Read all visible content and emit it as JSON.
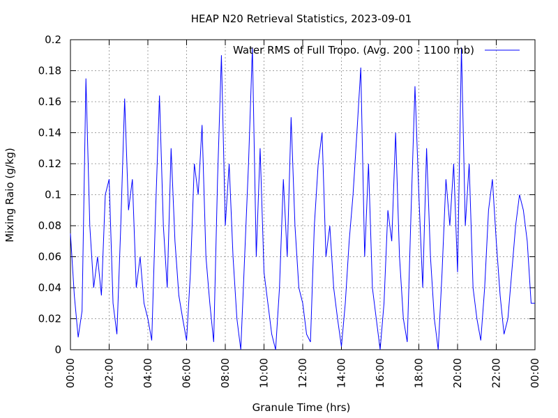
{
  "chart_data": {
    "type": "line",
    "title": "HEAP N20 Retrieval Statistics, 2023-09-01",
    "x_label": "Granule Time (hrs)",
    "y_label": "Mixing Raio (g/kg)",
    "x": [
      0,
      0.2,
      0.4,
      0.6,
      0.8,
      1,
      1.2,
      1.4,
      1.6,
      1.8,
      2,
      2.2,
      2.4,
      2.6,
      2.8,
      3,
      3.2,
      3.4,
      3.6,
      3.8,
      4,
      4.2,
      4.4,
      4.6,
      4.8,
      5,
      5.2,
      5.4,
      5.6,
      5.8,
      6,
      6.2,
      6.4,
      6.6,
      6.8,
      7,
      7.2,
      7.4,
      7.6,
      7.8,
      8,
      8.2,
      8.4,
      8.6,
      8.8,
      9,
      9.2,
      9.4,
      9.6,
      9.8,
      10,
      10.2,
      10.4,
      10.6,
      10.8,
      11,
      11.2,
      11.4,
      11.6,
      11.8,
      12,
      12.2,
      12.4,
      12.6,
      12.8,
      13,
      13.2,
      13.4,
      13.6,
      13.8,
      14,
      14.2,
      14.4,
      14.6,
      14.8,
      15,
      15.2,
      15.4,
      15.6,
      15.8,
      16,
      16.2,
      16.4,
      16.6,
      16.8,
      17,
      17.2,
      17.4,
      17.6,
      17.8,
      18,
      18.2,
      18.4,
      18.6,
      18.8,
      19,
      19.2,
      19.4,
      19.6,
      19.8,
      20,
      20.2,
      20.4,
      20.6,
      20.8,
      21,
      21.2,
      21.4,
      21.6,
      21.8,
      22,
      22.2,
      22.4,
      22.6,
      22.8,
      23,
      23.2,
      23.4,
      23.6,
      23.8,
      24
    ],
    "series": [
      {
        "name": "Water RMS of Full Tropo. (Avg. 200 - 1100 mb)",
        "color": "#0000ff",
        "values": [
          0.075,
          0.035,
          0.008,
          0.025,
          0.175,
          0.08,
          0.04,
          0.06,
          0.035,
          0.1,
          0.11,
          0.03,
          0.01,
          0.08,
          0.162,
          0.09,
          0.11,
          0.04,
          0.06,
          0.03,
          0.02,
          0.006,
          0.09,
          0.164,
          0.08,
          0.04,
          0.13,
          0.07,
          0.035,
          0.02,
          0.006,
          0.05,
          0.12,
          0.1,
          0.145,
          0.06,
          0.03,
          0.005,
          0.11,
          0.19,
          0.08,
          0.12,
          0.06,
          0.02,
          0,
          0.06,
          0.12,
          0.195,
          0.06,
          0.13,
          0.05,
          0.03,
          0.01,
          0,
          0.04,
          0.11,
          0.06,
          0.15,
          0.08,
          0.04,
          0.03,
          0.01,
          0.005,
          0.08,
          0.12,
          0.14,
          0.06,
          0.08,
          0.04,
          0.02,
          0.002,
          0.03,
          0.07,
          0.1,
          0.14,
          0.182,
          0.06,
          0.12,
          0.04,
          0.02,
          0,
          0.03,
          0.09,
          0.07,
          0.14,
          0.06,
          0.02,
          0.005,
          0.09,
          0.17,
          0.1,
          0.04,
          0.13,
          0.06,
          0.02,
          0,
          0.05,
          0.11,
          0.08,
          0.12,
          0.05,
          0.195,
          0.08,
          0.12,
          0.04,
          0.02,
          0.006,
          0.04,
          0.09,
          0.11,
          0.07,
          0.035,
          0.01,
          0.02,
          0.05,
          0.08,
          0.1,
          0.09,
          0.07,
          0.03,
          0.03
        ]
      }
    ],
    "xlim": [
      0,
      24
    ],
    "xticks": [
      {
        "value": 0,
        "label": "00:00"
      },
      {
        "value": 2,
        "label": "02:00"
      },
      {
        "value": 4,
        "label": "04:00"
      },
      {
        "value": 6,
        "label": "06:00"
      },
      {
        "value": 8,
        "label": "08:00"
      },
      {
        "value": 10,
        "label": "10:00"
      },
      {
        "value": 12,
        "label": "12:00"
      },
      {
        "value": 14,
        "label": "14:00"
      },
      {
        "value": 16,
        "label": "16:00"
      },
      {
        "value": 18,
        "label": "18:00"
      },
      {
        "value": 20,
        "label": "20:00"
      },
      {
        "value": 22,
        "label": "22:00"
      },
      {
        "value": 24,
        "label": "00:00"
      }
    ],
    "ylim": [
      0,
      0.2
    ],
    "yticks": [
      0,
      0.02,
      0.04,
      0.06,
      0.08,
      0.1,
      0.12,
      0.14,
      0.16,
      0.18,
      0.2
    ],
    "grid": true,
    "legend": "top-right"
  }
}
